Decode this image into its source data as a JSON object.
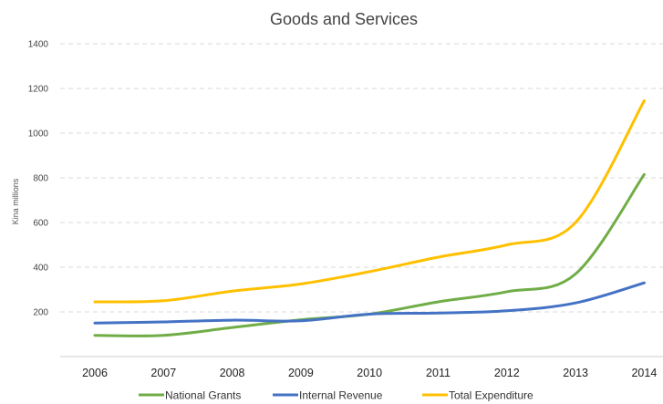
{
  "chart_data": {
    "type": "line",
    "title": "Goods and Services",
    "xlabel": "",
    "ylabel": "Kina millions",
    "categories": [
      "2006",
      "2007",
      "2008",
      "2009",
      "2010",
      "2011",
      "2012",
      "2013",
      "2014"
    ],
    "yticks": [
      200,
      400,
      600,
      800,
      1000,
      1200,
      1400
    ],
    "ylim": [
      0,
      1400
    ],
    "grid": true,
    "legend_position": "bottom",
    "series": [
      {
        "name": "National Grants",
        "color": "#70ad47",
        "values": [
          95,
          95,
          130,
          165,
          190,
          245,
          290,
          370,
          815
        ]
      },
      {
        "name": "Internal Revenue",
        "color": "#4472c4",
        "values": [
          150,
          155,
          163,
          160,
          190,
          195,
          205,
          240,
          330
        ]
      },
      {
        "name": "Total Expenditure",
        "color": "#ffc000",
        "values": [
          245,
          250,
          293,
          325,
          380,
          445,
          500,
          600,
          1145
        ]
      }
    ]
  }
}
